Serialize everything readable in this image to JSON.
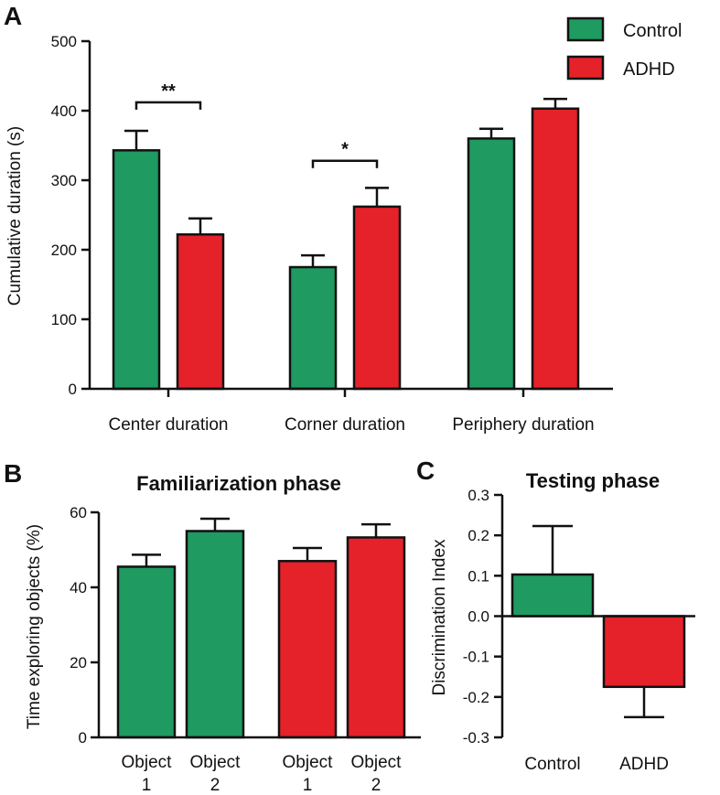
{
  "figure": {
    "panel_labels": {
      "a": "A",
      "b": "B",
      "c": "C"
    },
    "colors": {
      "control": "#1f9a60",
      "adhd": "#e5212a",
      "axis": "#111111"
    }
  },
  "chart_data": [
    {
      "id": "A",
      "type": "bar",
      "title": "",
      "ylabel": "Cumulative duration (s)",
      "xlabel": "",
      "ylim": [
        0,
        500
      ],
      "yticks": [
        0,
        100,
        200,
        300,
        400,
        500
      ],
      "categories": [
        "Center duration",
        "Corner duration",
        "Periphery duration"
      ],
      "series": [
        {
          "name": "Control",
          "color": "#1f9a60",
          "values": [
            343,
            175,
            360
          ],
          "errors": [
            28,
            17,
            14
          ]
        },
        {
          "name": "ADHD",
          "color": "#e5212a",
          "values": [
            222,
            262,
            403
          ],
          "errors": [
            23,
            27,
            14
          ]
        }
      ],
      "legend": {
        "position": "top-right",
        "entries": [
          "Control",
          "ADHD"
        ]
      },
      "annotations": [
        {
          "label": "**",
          "category_index": 0,
          "y": 412
        },
        {
          "label": "*",
          "category_index": 1,
          "y": 328
        }
      ]
    },
    {
      "id": "B",
      "type": "bar",
      "title": "Familiarization phase",
      "ylabel": "Time exploring objects (%)",
      "xlabel": "",
      "ylim": [
        0,
        60
      ],
      "yticks": [
        0,
        20,
        40,
        60
      ],
      "bars": [
        {
          "label_line1": "Object",
          "label_line2": "1",
          "group": "Control",
          "value": 45.5,
          "error": 3.2
        },
        {
          "label_line1": "Object",
          "label_line2": "2",
          "group": "Control",
          "value": 55.0,
          "error": 3.3
        },
        {
          "label_line1": "Object",
          "label_line2": "1",
          "group": "ADHD",
          "value": 47.0,
          "error": 3.5
        },
        {
          "label_line1": "Object",
          "label_line2": "2",
          "group": "ADHD",
          "value": 53.3,
          "error": 3.5
        }
      ]
    },
    {
      "id": "C",
      "type": "bar",
      "title": "Testing phase",
      "ylabel": "Discrimination Index",
      "xlabel": "",
      "ylim": [
        -0.3,
        0.3
      ],
      "yticks": [
        "-0.3",
        "-0.2",
        "-0.1",
        "0.0",
        "0.1",
        "0.2",
        "0.3"
      ],
      "categories": [
        "Control",
        "ADHD"
      ],
      "values": [
        0.103,
        -0.175
      ],
      "errors": [
        0.12,
        0.075
      ],
      "colors": [
        "#1f9a60",
        "#e5212a"
      ]
    }
  ]
}
